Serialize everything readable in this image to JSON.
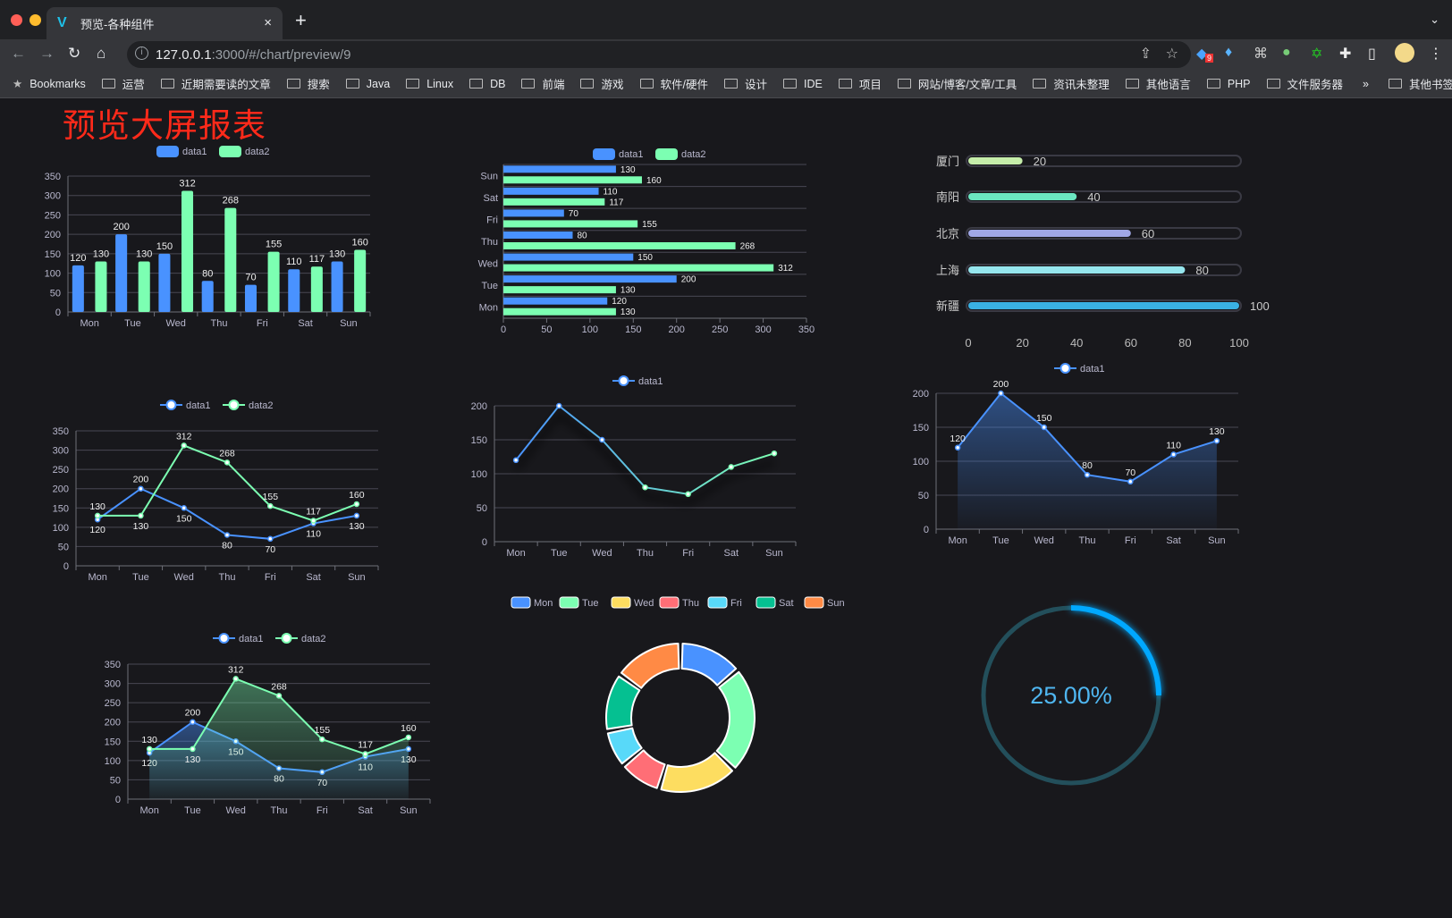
{
  "browser": {
    "tab_title": "预览-各种组件",
    "tab_close": "×",
    "new_tab": "+",
    "url_host": "127.0.0.1",
    "url_rest": ":3000/#/chart/preview/9",
    "extension_badge": "9",
    "bookmarks": [
      "Bookmarks",
      "运营",
      "近期需要读的文章",
      "搜索",
      "Java",
      "Linux",
      "DB",
      "前端",
      "游戏",
      "软件/硬件",
      "设计",
      "IDE",
      "项目",
      "网站/博客/文章/工具",
      "资讯未整理",
      "其他语言",
      "PHP",
      "文件服务器"
    ],
    "bookmarks_overflow": "»",
    "other_bookmarks": "其他书签"
  },
  "page": {
    "title": "预览大屏报表"
  },
  "colors": {
    "data1": "#4992ff",
    "data2": "#7cffb2",
    "title": "#ff2a1a",
    "gauge": "#00a8ff"
  },
  "chart_data": [
    {
      "type": "bar",
      "categories": [
        "Mon",
        "Tue",
        "Wed",
        "Thu",
        "Fri",
        "Sat",
        "Sun"
      ],
      "series": [
        {
          "name": "data1",
          "values": [
            120,
            200,
            150,
            80,
            70,
            110,
            130
          ]
        },
        {
          "name": "data2",
          "values": [
            130,
            130,
            312,
            268,
            155,
            117,
            160
          ]
        }
      ],
      "ylim": [
        0,
        350
      ],
      "yticks": [
        "0",
        "50",
        "100",
        "150",
        "200",
        "250",
        "300",
        "350"
      ],
      "legend": "top",
      "grid": true,
      "data_labels": true
    },
    {
      "type": "bar",
      "orientation": "horizontal",
      "categories": [
        "Mon",
        "Tue",
        "Wed",
        "Thu",
        "Fri",
        "Sat",
        "Sun"
      ],
      "series": [
        {
          "name": "data1",
          "values": [
            120,
            200,
            150,
            80,
            70,
            110,
            130
          ]
        },
        {
          "name": "data2",
          "values": [
            130,
            130,
            312,
            268,
            155,
            117,
            160
          ]
        }
      ],
      "xlim": [
        0,
        350
      ],
      "xticks": [
        "0",
        "50",
        "100",
        "150",
        "200",
        "250",
        "300",
        "350"
      ],
      "legend": "top",
      "grid": true,
      "data_labels": true
    },
    {
      "type": "bar",
      "orientation": "horizontal",
      "style": "progress",
      "categories": [
        "厦门",
        "南阳",
        "北京",
        "上海",
        "新疆"
      ],
      "values": [
        20,
        40,
        60,
        80,
        100
      ],
      "colors": [
        "#c6eeaa",
        "#6be6c1",
        "#a0a7e6",
        "#96e6ee",
        "#3ab1e3"
      ],
      "xlim": [
        0,
        100
      ],
      "xticks": [
        "0",
        "20",
        "40",
        "60",
        "80",
        "100"
      ],
      "data_labels": true
    },
    {
      "type": "line",
      "categories": [
        "Mon",
        "Tue",
        "Wed",
        "Thu",
        "Fri",
        "Sat",
        "Sun"
      ],
      "series": [
        {
          "name": "data1",
          "values": [
            120,
            200,
            150,
            80,
            70,
            110,
            130
          ]
        },
        {
          "name": "data2",
          "values": [
            130,
            130,
            312,
            268,
            155,
            117,
            160
          ]
        }
      ],
      "ylim": [
        0,
        350
      ],
      "yticks": [
        "0",
        "50",
        "100",
        "150",
        "200",
        "250",
        "300",
        "350"
      ],
      "legend": "top",
      "grid": true,
      "data_labels": true
    },
    {
      "type": "line",
      "categories": [
        "Mon",
        "Tue",
        "Wed",
        "Thu",
        "Fri",
        "Sat",
        "Sun"
      ],
      "series": [
        {
          "name": "data1",
          "values": [
            120,
            200,
            150,
            80,
            70,
            110,
            130
          ]
        }
      ],
      "ylim": [
        0,
        200
      ],
      "yticks": [
        "0",
        "50",
        "100",
        "150",
        "200"
      ],
      "legend": "top",
      "grid": true,
      "data_labels": false,
      "line_gradient": [
        "#4992ff",
        "#7cffb2"
      ]
    },
    {
      "type": "area",
      "categories": [
        "Mon",
        "Tue",
        "Wed",
        "Thu",
        "Fri",
        "Sat",
        "Sun"
      ],
      "series": [
        {
          "name": "data1",
          "values": [
            120,
            200,
            150,
            80,
            70,
            110,
            130
          ]
        }
      ],
      "ylim": [
        0,
        200
      ],
      "yticks": [
        "0",
        "50",
        "100",
        "150",
        "200"
      ],
      "legend": "top",
      "grid": true,
      "data_labels": true
    },
    {
      "type": "area",
      "categories": [
        "Mon",
        "Tue",
        "Wed",
        "Thu",
        "Fri",
        "Sat",
        "Sun"
      ],
      "series": [
        {
          "name": "data1",
          "values": [
            120,
            200,
            150,
            80,
            70,
            110,
            130
          ]
        },
        {
          "name": "data2",
          "values": [
            130,
            130,
            312,
            268,
            155,
            117,
            160
          ]
        }
      ],
      "ylim": [
        0,
        350
      ],
      "yticks": [
        "0",
        "50",
        "100",
        "150",
        "200",
        "250",
        "300",
        "350"
      ],
      "legend": "top",
      "grid": true,
      "data_labels": true
    },
    {
      "type": "pie",
      "style": "donut",
      "categories": [
        "Mon",
        "Tue",
        "Wed",
        "Thu",
        "Fri",
        "Sat",
        "Sun"
      ],
      "values": [
        120,
        200,
        150,
        80,
        70,
        110,
        130
      ],
      "colors": [
        "#4992ff",
        "#7cffb2",
        "#fddd60",
        "#ff6e76",
        "#58d9f9",
        "#05c091",
        "#ff8a45"
      ],
      "legend": "top",
      "data_labels": false
    },
    {
      "type": "gauge",
      "style": "ring",
      "value": 25,
      "max": 100,
      "label": "25.00%"
    }
  ]
}
